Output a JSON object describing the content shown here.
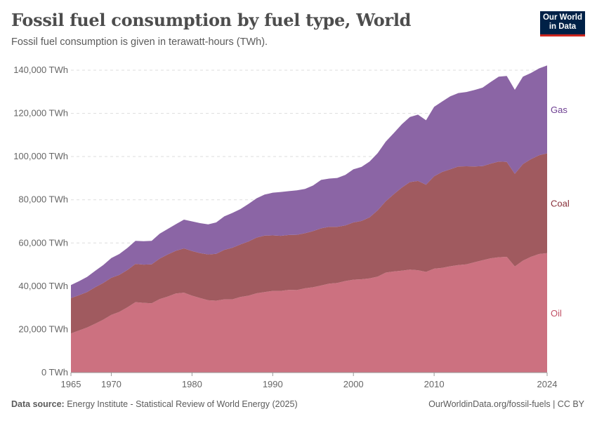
{
  "header": {
    "title": "Fossil fuel consumption by fuel type, World",
    "subtitle": "Fossil fuel consumption is given in terawatt-hours (TWh).",
    "logo_text": "Our World in Data"
  },
  "footer": {
    "source_label": "Data source:",
    "source": "Energy Institute - Statistical Review of World Energy (2025)",
    "credit": "OurWorldinData.org/fossil-fuels | CC BY"
  },
  "chart_data": {
    "type": "area",
    "stacked": true,
    "title": "Fossil fuel consumption by fuel type, World",
    "ylim": [
      0,
      140000
    ],
    "y_ticks": [
      0,
      20000,
      40000,
      60000,
      80000,
      100000,
      120000,
      140000
    ],
    "y_tick_labels": [
      "0 TWh",
      "20,000 TWh",
      "40,000 TWh",
      "60,000 TWh",
      "80,000 TWh",
      "100,000 TWh",
      "120,000 TWh",
      "140,000 TWh"
    ],
    "x_ticks": [
      1965,
      1970,
      1980,
      1990,
      2000,
      2010,
      2024
    ],
    "x_tick_labels": [
      "1965",
      "1970",
      "1980",
      "1990",
      "2000",
      "2010",
      "2024"
    ],
    "xlim": [
      1965,
      2024
    ],
    "grid": "horizontal dashed",
    "legend": "inline-right",
    "x_start": 1965,
    "series": [
      {
        "name": "Oil",
        "color": "#cc7180",
        "label_color": "#c15065",
        "values": [
          18100,
          19500,
          20900,
          22600,
          24500,
          26700,
          28100,
          30200,
          32600,
          32300,
          32100,
          34000,
          35200,
          36600,
          37000,
          35600,
          34500,
          33500,
          33300,
          33900,
          33900,
          35000,
          35600,
          36700,
          37300,
          37800,
          37800,
          38300,
          38200,
          39000,
          39500,
          40300,
          41200,
          41500,
          42400,
          43000,
          43200,
          43600,
          44400,
          46300,
          46800,
          47200,
          47700,
          47400,
          46600,
          48100,
          48500,
          49200,
          49800,
          50100,
          51100,
          52000,
          52900,
          53400,
          53600,
          49100,
          51800,
          53600,
          54900,
          55300
        ]
      },
      {
        "name": "Coal",
        "color": "#a05a5f",
        "label_color": "#883039",
        "values": [
          16400,
          16300,
          16400,
          16900,
          17000,
          17200,
          17100,
          17300,
          17700,
          17700,
          18000,
          18800,
          19500,
          19800,
          20500,
          20700,
          20800,
          21200,
          21700,
          22900,
          23900,
          24300,
          25100,
          25800,
          26100,
          25700,
          25500,
          25400,
          25600,
          25500,
          26000,
          26500,
          26300,
          26000,
          25700,
          26500,
          27000,
          28300,
          30700,
          33000,
          35800,
          38500,
          40500,
          41300,
          40400,
          42800,
          44400,
          44900,
          45600,
          45400,
          44300,
          43600,
          43800,
          44300,
          43900,
          42900,
          44700,
          45200,
          45700,
          46200
        ]
      },
      {
        "name": "Gas",
        "color": "#8b65a5",
        "label_color": "#6d3e91",
        "values": [
          6000,
          6500,
          7000,
          7600,
          8300,
          9100,
          9700,
          10200,
          10700,
          10800,
          10900,
          11500,
          11800,
          12300,
          13300,
          13700,
          13900,
          13900,
          14500,
          15500,
          16100,
          16400,
          17400,
          18200,
          19000,
          19800,
          20300,
          20300,
          20600,
          20500,
          21100,
          22400,
          22300,
          22600,
          23400,
          24600,
          25000,
          25800,
          26500,
          27600,
          28300,
          29300,
          30100,
          30700,
          29800,
          32100,
          32600,
          33800,
          34000,
          34400,
          35400,
          36300,
          37800,
          39300,
          39800,
          38900,
          40500,
          39900,
          40200,
          40700
        ]
      }
    ]
  }
}
